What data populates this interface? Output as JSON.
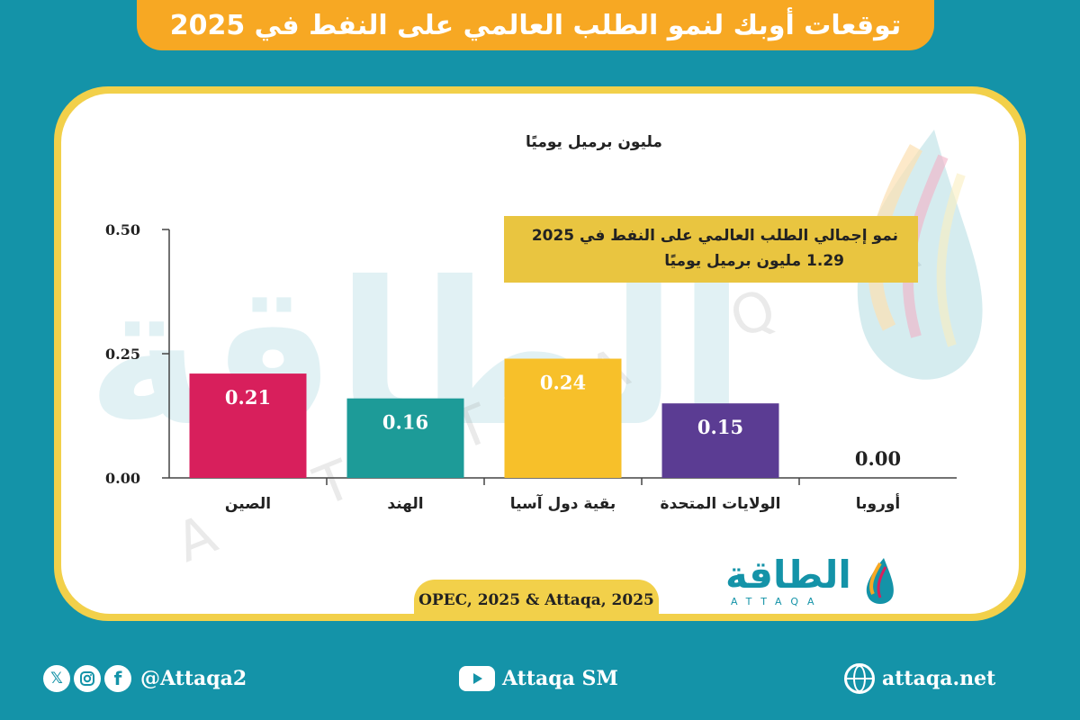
{
  "header": {
    "title": "توقعات أوبك لنمو الطلب العالمي على النفط في 2025"
  },
  "callout": {
    "line1": "نمو إجمالي الطلب العالمي على النفط في 2025",
    "line2": "1.29  مليون برميل يوميًا"
  },
  "source": "OPEC, 2025 & Attaqa, 2025",
  "logo": {
    "arabic": "الطاقة",
    "latin": "ATTAQA"
  },
  "watermark": {
    "arabic": "الطاقة",
    "latin": "ATTAQA"
  },
  "footer": {
    "social_handle": "@Attaqa2",
    "youtube": "Attaqa SM",
    "website": "attaqa.net",
    "icons": [
      "x-icon",
      "instagram-icon",
      "facebook-icon",
      "youtube-icon",
      "globe-icon"
    ]
  },
  "colors": {
    "background": "#1493a8",
    "title_bar": "#f7a823",
    "card_border": "#f2d04a",
    "callout": "#e9c540"
  },
  "chart_data": {
    "type": "bar",
    "title": "",
    "ylabel": "مليون برميل يوميًا",
    "xlabel": "",
    "categories": [
      "الصين",
      "الهند",
      "بقية دول آسيا",
      "الولايات المتحدة",
      "أوروبا"
    ],
    "values": [
      0.21,
      0.16,
      0.24,
      0.15,
      0.0
    ],
    "value_labels": [
      "0.21",
      "0.16",
      "0.24",
      "0.15",
      "0.00"
    ],
    "bar_colors": [
      "#d81f5c",
      "#1d9b98",
      "#f7c02a",
      "#5b3c93",
      "#cccccc"
    ],
    "yticks": [
      "0.50",
      "0.25",
      "0.00"
    ],
    "ytick_values": [
      0.5,
      0.25,
      0.0
    ],
    "ylim": [
      0,
      0.5
    ],
    "grid": false,
    "legend": "none"
  }
}
